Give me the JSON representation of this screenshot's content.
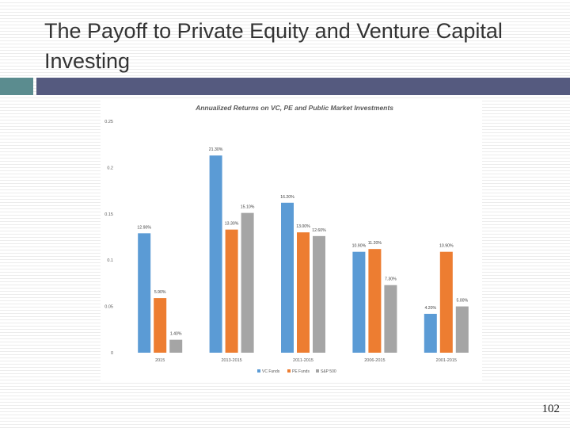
{
  "slide": {
    "title": "The Payoff to Private Equity and Venture Capital Investing",
    "page_number": "102"
  },
  "colors": {
    "header_band": "#555a7f",
    "header_accent": "#5b8c8f",
    "vc": "#5b9bd5",
    "pe": "#ed7d31",
    "sp": "#a5a5a5"
  },
  "chart_data": {
    "type": "bar",
    "title": "Annualized Returns on VC, PE and Public Market Investments",
    "categories": [
      "2015",
      "2013-2015",
      "2011-2015",
      "2006-2015",
      "2001-2015"
    ],
    "series": [
      {
        "name": "VC Funds",
        "values": [
          0.129,
          0.213,
          0.162,
          0.109,
          0.042
        ],
        "labels": [
          "12.90%",
          "21.30%",
          "16.20%",
          "10.90%",
          "4.20%"
        ]
      },
      {
        "name": "PE Funds",
        "values": [
          0.059,
          0.133,
          0.13,
          0.112,
          0.109
        ],
        "labels": [
          "5.90%",
          "13.30%",
          "13.00%",
          "11.20%",
          "10.90%"
        ]
      },
      {
        "name": "S&P 500",
        "values": [
          0.014,
          0.151,
          0.126,
          0.073,
          0.05
        ],
        "labels": [
          "1.40%",
          "15.10%",
          "12.60%",
          "7.30%",
          "5.00%"
        ]
      }
    ],
    "yticks": [
      "0",
      "0.05",
      "0.1",
      "0.15",
      "0.2",
      "0.25"
    ],
    "ylim": [
      0,
      0.25
    ],
    "legend_position": "bottom",
    "grid": false
  }
}
